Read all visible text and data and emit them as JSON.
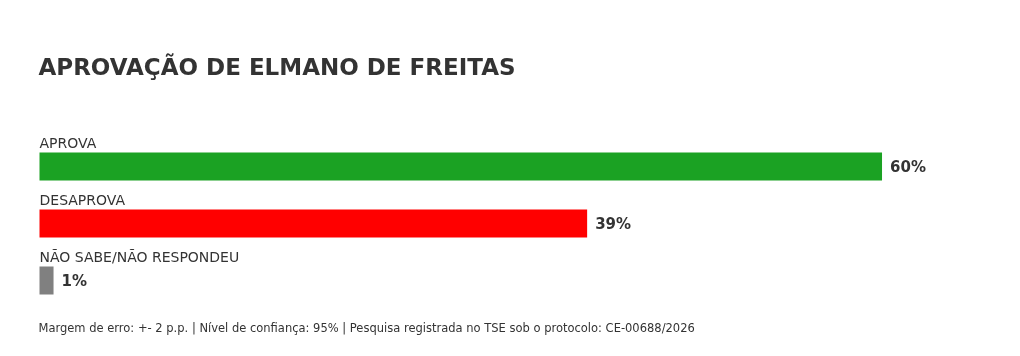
{
  "chart_data": {
    "type": "bar",
    "orientation": "horizontal",
    "title": "APROVAÇÃO DE ELMANO DE FREITAS",
    "categories": [
      "APROVA",
      "DESAPROVA",
      "NÃO SABE/NÃO RESPONDEU"
    ],
    "values": [
      60,
      39,
      1
    ],
    "colors": [
      "#1ba223",
      "#ff0000",
      "#808080"
    ],
    "value_labels": [
      "60%",
      "39%",
      "1%"
    ],
    "grid": false,
    "annotations": [
      "Margem de erro: +- 2 p.p. | Nível de confiança: 95% | Pesquisa registrada no TSE sob o protocolo: CE-00688/2026"
    ]
  }
}
